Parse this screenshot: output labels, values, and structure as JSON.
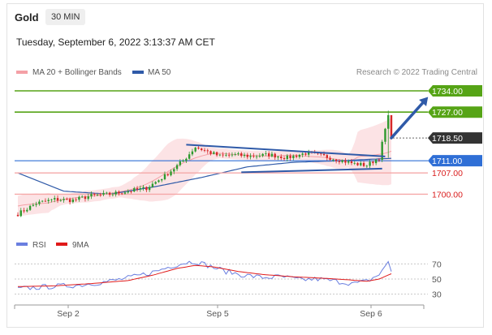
{
  "header": {
    "symbol": "Gold",
    "timeframe": "30 MIN",
    "datetime": "Tuesday, September 6, 2022 3:13:37 AM CET",
    "credit": "Research © 2022 Trading Central"
  },
  "colors": {
    "bollinger": "#f4a0a6",
    "ma50": "#2f5aa8",
    "resistance": "#56a416",
    "current": "#333333",
    "pivot": "#2f6fd6",
    "support": "#d91c1c",
    "support_line": "#f5a8a8",
    "triangle": "#2f5aa8",
    "rsi": "#6a7fe0",
    "ma9": "#e01a1a"
  },
  "chart_data": [
    {
      "type": "candlestick",
      "legend": [
        "MA 20 + Bollinger Bands",
        "MA 50"
      ],
      "x_ticks": [
        "Sep 2",
        "Sep 5",
        "Sep 6"
      ],
      "levels": [
        {
          "value": 1734.0,
          "label": "1734.00",
          "kind": "resistance"
        },
        {
          "value": 1727.0,
          "label": "1727.00",
          "kind": "resistance"
        },
        {
          "value": 1718.5,
          "label": "1718.50",
          "kind": "current"
        },
        {
          "value": 1711.0,
          "label": "1711.00",
          "kind": "pivot"
        },
        {
          "value": 1707.0,
          "label": "1707.00",
          "kind": "support"
        },
        {
          "value": 1700.0,
          "label": "1700.00",
          "kind": "support"
        }
      ],
      "ylim": [
        1690.5,
        1737.2
      ],
      "price_anchors": [
        [
          0,
          1693.5
        ],
        [
          6,
          1697.0
        ],
        [
          12,
          1698.3
        ],
        [
          18,
          1698.0
        ],
        [
          24,
          1699.5
        ],
        [
          30,
          1700.0
        ],
        [
          36,
          1701.0
        ],
        [
          42,
          1702.0
        ],
        [
          48,
          1706.0
        ],
        [
          54,
          1711.0
        ],
        [
          58,
          1715.5
        ],
        [
          62,
          1714.0
        ],
        [
          66,
          1712.5
        ],
        [
          70,
          1713.0
        ],
        [
          76,
          1712.5
        ],
        [
          82,
          1713.0
        ],
        [
          88,
          1712.0
        ],
        [
          94,
          1713.5
        ],
        [
          100,
          1712.5
        ],
        [
          106,
          1711.0
        ],
        [
          110,
          1710.0
        ],
        [
          114,
          1709.5
        ],
        [
          118,
          1712.0
        ],
        [
          121,
          1726.0
        ],
        [
          122,
          1718.5
        ]
      ],
      "ma50_anchors": [
        [
          0,
          1707.0
        ],
        [
          15,
          1701.0
        ],
        [
          30,
          1700.0
        ],
        [
          45,
          1702.5
        ],
        [
          60,
          1705.5
        ],
        [
          75,
          1709.0
        ],
        [
          90,
          1710.5
        ],
        [
          105,
          1711.0
        ],
        [
          122,
          1711.8
        ]
      ],
      "annotations": {
        "triangle_upper": [
          [
            55,
            1716.3
          ],
          [
            120,
            1712.4
          ]
        ],
        "triangle_lower": [
          [
            73,
            1707.2
          ],
          [
            119,
            1708.4
          ]
        ],
        "arrow": [
          [
            122,
            1718.5
          ],
          [
            134,
            1732.0
          ]
        ]
      }
    },
    {
      "type": "line",
      "legend": [
        "RSI",
        "9MA"
      ],
      "y_ticks": [
        70,
        50,
        30
      ],
      "ylim": [
        20,
        80
      ],
      "rsi_anchors": [
        [
          0,
          37
        ],
        [
          10,
          40
        ],
        [
          20,
          42
        ],
        [
          30,
          47
        ],
        [
          38,
          53
        ],
        [
          45,
          60
        ],
        [
          50,
          67
        ],
        [
          55,
          72
        ],
        [
          58,
          73
        ],
        [
          62,
          68
        ],
        [
          68,
          60
        ],
        [
          74,
          55
        ],
        [
          80,
          52
        ],
        [
          86,
          53
        ],
        [
          92,
          49
        ],
        [
          98,
          50
        ],
        [
          104,
          47
        ],
        [
          110,
          44
        ],
        [
          114,
          47
        ],
        [
          118,
          56
        ],
        [
          121,
          73
        ],
        [
          122,
          60
        ]
      ],
      "ma9_anchors": [
        [
          0,
          40
        ],
        [
          12,
          41
        ],
        [
          24,
          44
        ],
        [
          36,
          48
        ],
        [
          44,
          55
        ],
        [
          52,
          64
        ],
        [
          58,
          68
        ],
        [
          64,
          66
        ],
        [
          72,
          60
        ],
        [
          80,
          56
        ],
        [
          90,
          53
        ],
        [
          100,
          51
        ],
        [
          108,
          49
        ],
        [
          114,
          47
        ],
        [
          118,
          50
        ],
        [
          122,
          57
        ]
      ]
    }
  ]
}
